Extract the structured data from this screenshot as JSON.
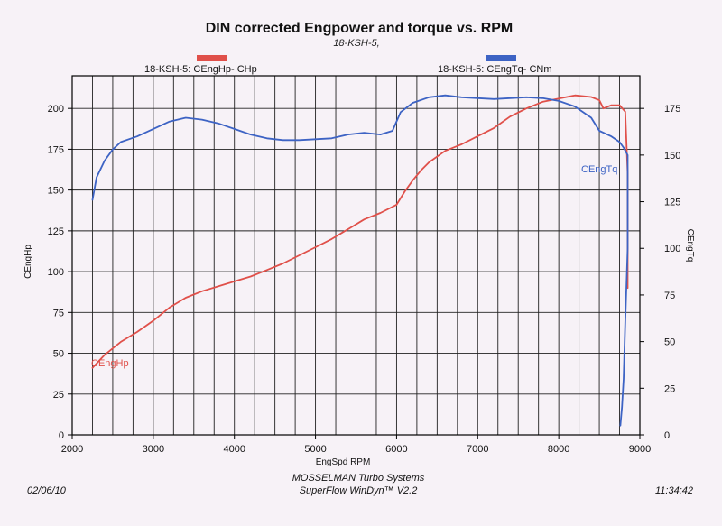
{
  "chart_data": {
    "type": "line",
    "title": "DIN corrected Engpower and torque vs. RPM",
    "subtitle": "18-KSH-5,",
    "xlabel": "EngSpd  RPM",
    "ylabel_left": "CEngHp",
    "ylabel_right": "CEngTq",
    "xlim": [
      2000,
      9000
    ],
    "ylim_left": [
      0,
      220
    ],
    "ylim_right": [
      0,
      192.5
    ],
    "x_ticks": [
      2000,
      3000,
      4000,
      5000,
      6000,
      7000,
      8000,
      9000
    ],
    "y_ticks_left": [
      0,
      25,
      50,
      75,
      100,
      125,
      150,
      175,
      200
    ],
    "y_ticks_right": [
      0,
      25,
      50,
      75,
      100,
      125,
      150,
      175
    ],
    "grid": true,
    "legend": [
      {
        "label": "18-KSH-5: CEngHp-  CHp",
        "color": "#e0504a"
      },
      {
        "label": "18-KSH-5: CEngTq-  CNm",
        "color": "#3d63c4"
      }
    ],
    "series": [
      {
        "name": "CEngHp",
        "color": "#e0504a",
        "axis": "left",
        "x": [
          2250,
          2400,
          2600,
          2800,
          3000,
          3200,
          3400,
          3600,
          3800,
          4000,
          4200,
          4400,
          4600,
          4800,
          5000,
          5200,
          5400,
          5600,
          5800,
          6000,
          6100,
          6200,
          6300,
          6400,
          6600,
          6800,
          7000,
          7200,
          7400,
          7600,
          7800,
          8000,
          8200,
          8400,
          8500,
          8550,
          8650,
          8750,
          8820,
          8850,
          8850
        ],
        "y": [
          41,
          49,
          57,
          63,
          70,
          78,
          84,
          88,
          91,
          94,
          97,
          101,
          105,
          110,
          115,
          120,
          126,
          132,
          136,
          141,
          149,
          156,
          162,
          167,
          174,
          178,
          183,
          188,
          195,
          200,
          204,
          206,
          208,
          207,
          205,
          200,
          202,
          202,
          198,
          160,
          90
        ]
      },
      {
        "name": "CEngTq",
        "color": "#3d63c4",
        "axis": "right",
        "x": [
          2250,
          2300,
          2400,
          2500,
          2600,
          2800,
          3000,
          3200,
          3400,
          3600,
          3800,
          4000,
          4200,
          4400,
          4600,
          4800,
          5000,
          5200,
          5400,
          5600,
          5800,
          5950,
          6050,
          6200,
          6400,
          6600,
          6800,
          7000,
          7200,
          7400,
          7600,
          7800,
          8000,
          8200,
          8400,
          8500,
          8550,
          8650,
          8750,
          8800,
          8850,
          8850,
          8820,
          8800,
          8780,
          8760
        ],
        "y": [
          126,
          138,
          147,
          153,
          157,
          160,
          164,
          168,
          170,
          169,
          167,
          164,
          161,
          159,
          158,
          158,
          158.5,
          159,
          161,
          162,
          161,
          163,
          173,
          178,
          181,
          182,
          181,
          180.5,
          180,
          180.5,
          181,
          180.5,
          179,
          176,
          170,
          163,
          162,
          160,
          157,
          154,
          150,
          100,
          60,
          30,
          15,
          5
        ]
      }
    ],
    "annotations": [
      "CEngHp",
      "CEngTq"
    ]
  },
  "footer": {
    "date": "02/06/10",
    "company": "MOSSELMAN Turbo Systems",
    "software": "SuperFlow WinDyn™ V2.2",
    "time": "11:34:42"
  }
}
